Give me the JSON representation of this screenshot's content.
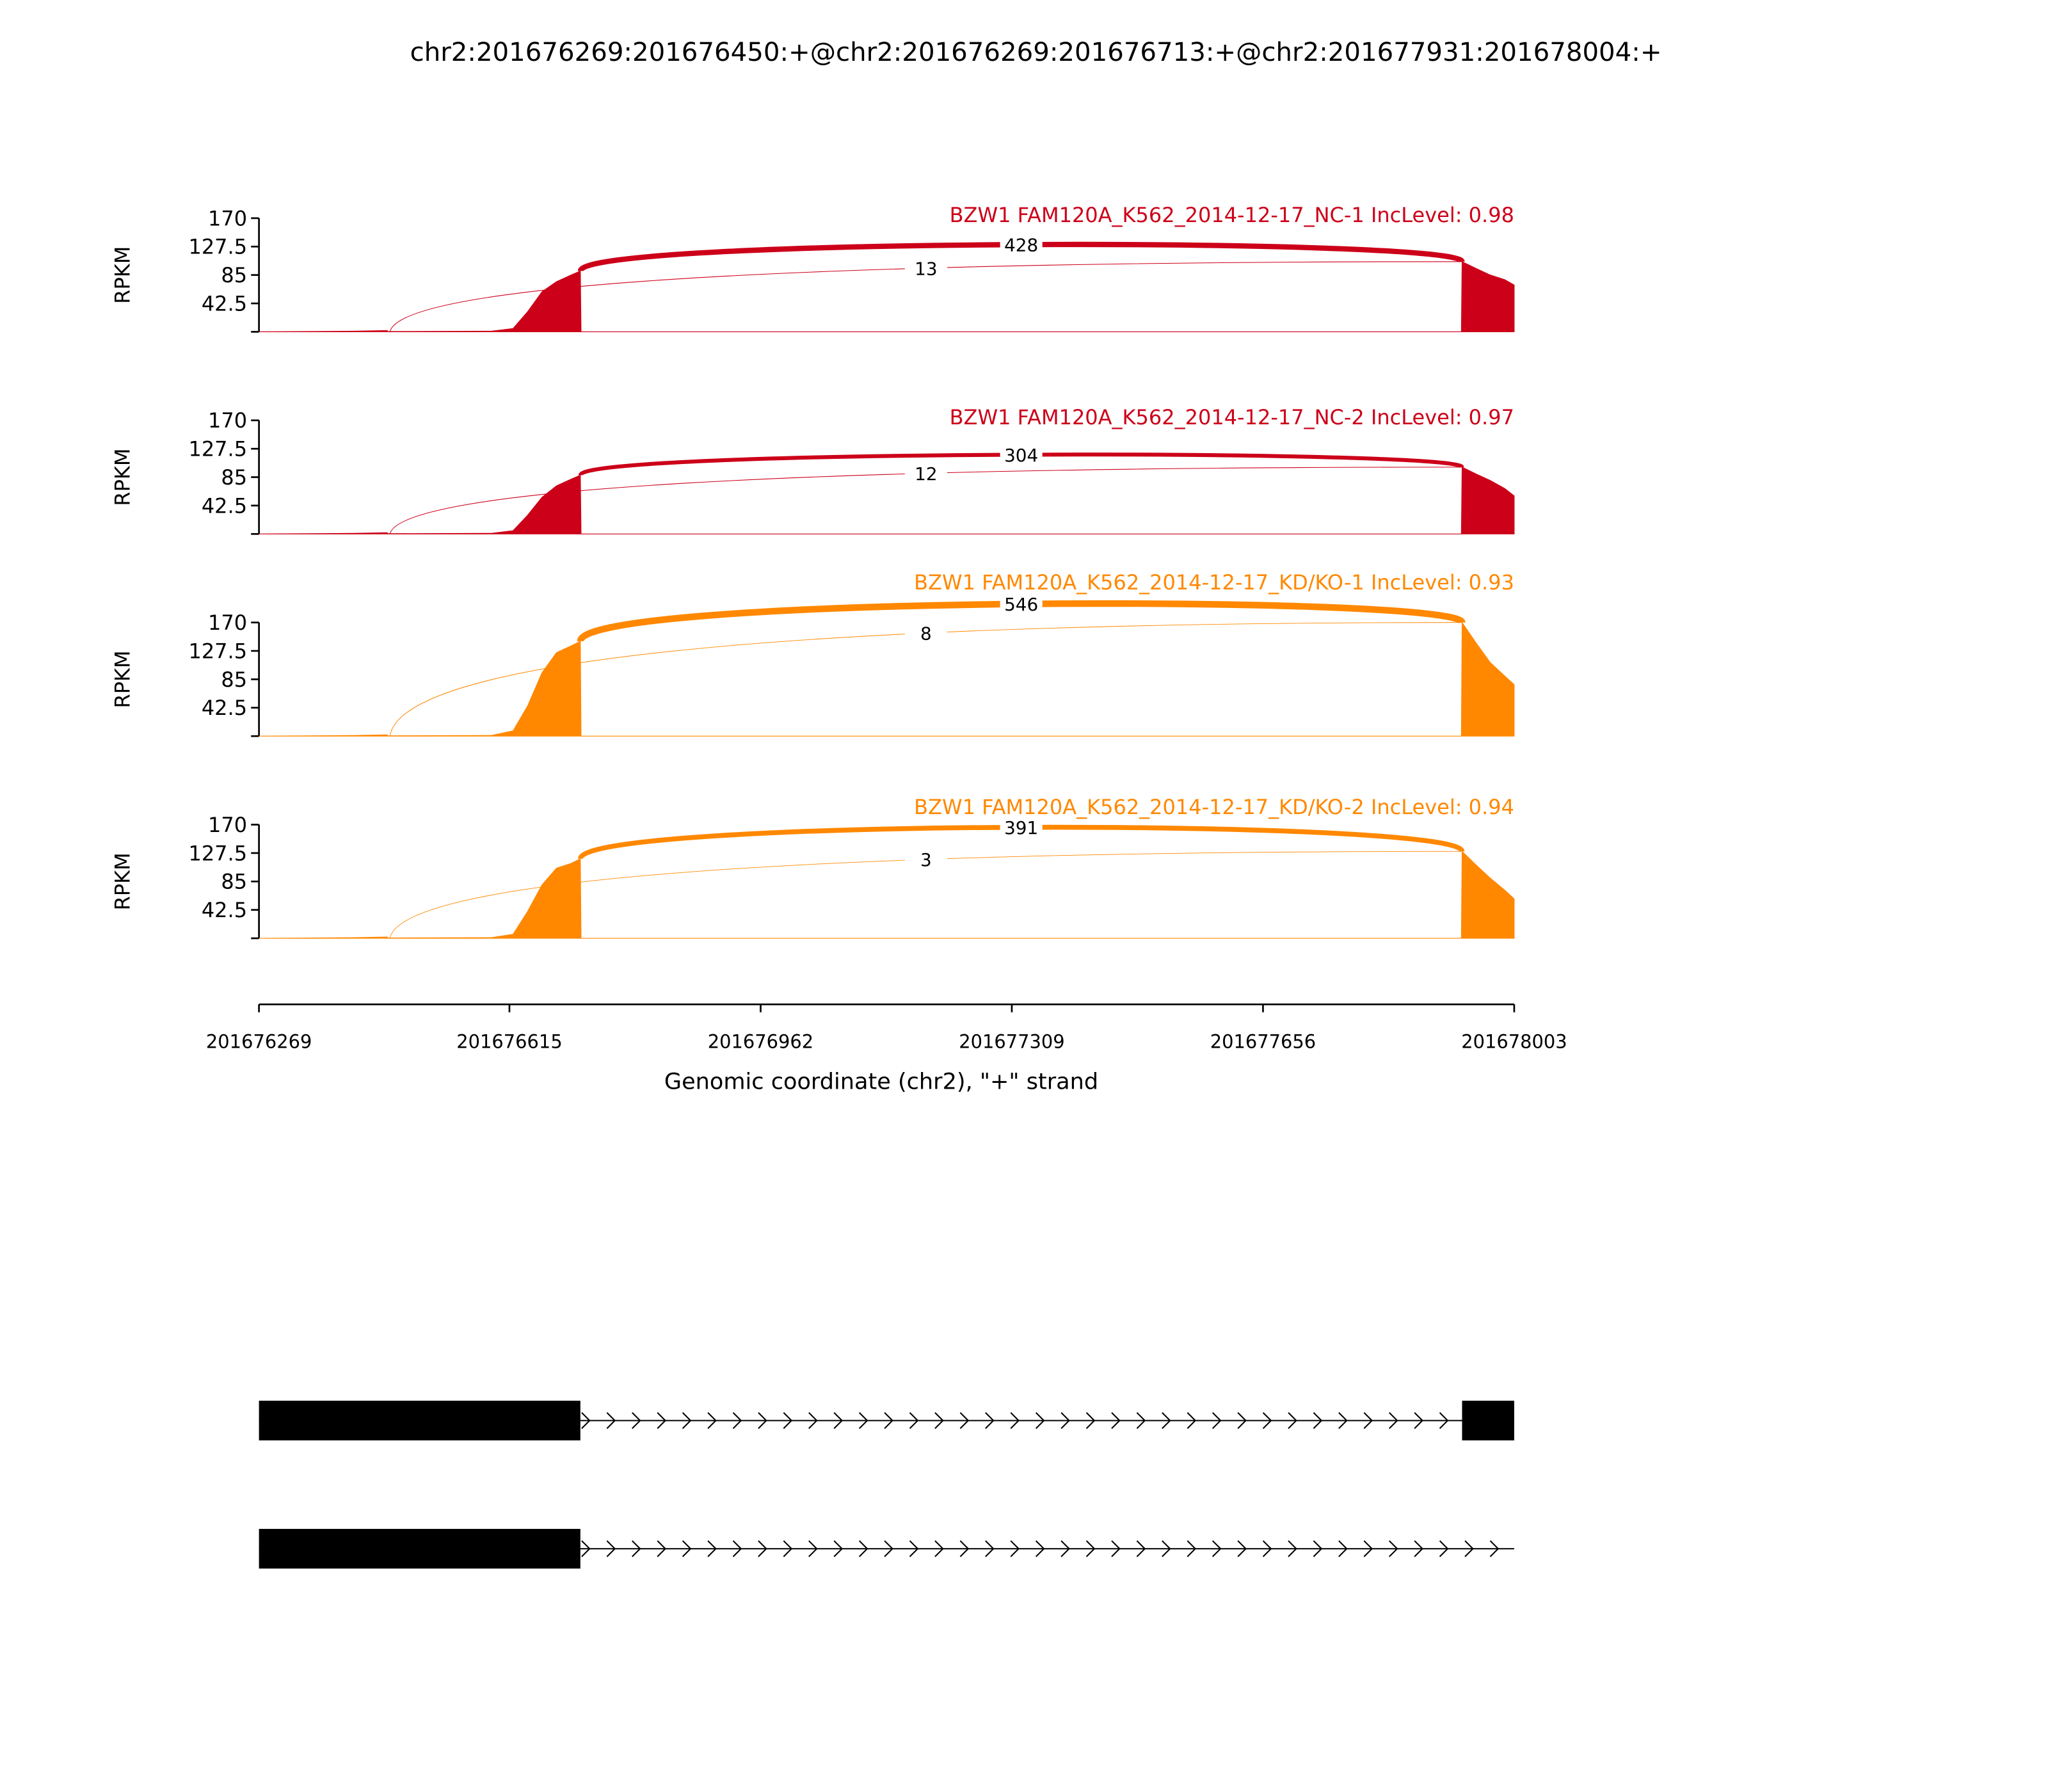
{
  "title": "chr2:201676269:201676450:+@chr2:201676269:201676713:+@chr2:201677931:201678004:+",
  "chart_data": [
    {
      "type": "sashimi",
      "title": "BZW1 FAM120A_K562_2014-12-17_NC-1 IncLevel: 0.98",
      "color": "#cc0019",
      "ylabel": "RPKM",
      "ylim": [
        0,
        170
      ],
      "yticks": [
        42.5,
        85,
        127.5,
        170
      ],
      "x": [
        201676269,
        201676400,
        201676446,
        201676447,
        201676590,
        201676620,
        201676640,
        201676660,
        201676680,
        201676700,
        201676713,
        201676714,
        201677930,
        201677931,
        201677950,
        201677970,
        201677990,
        201678003
      ],
      "values": [
        0,
        1,
        2,
        0.5,
        1,
        5,
        30,
        60,
        75,
        85,
        91,
        0,
        0,
        105,
        95,
        85,
        78,
        70
      ],
      "junctions": [
        {
          "start": 201676713,
          "end": 201677931,
          "count": 428
        },
        {
          "start": 201676450,
          "end": 201677931,
          "count": 13
        }
      ]
    },
    {
      "type": "sashimi",
      "title": "BZW1 FAM120A_K562_2014-12-17_NC-2 IncLevel: 0.97",
      "color": "#cc0019",
      "ylabel": "RPKM",
      "ylim": [
        0,
        170
      ],
      "yticks": [
        42.5,
        85,
        127.5,
        170
      ],
      "x": [
        201676269,
        201676400,
        201676446,
        201676447,
        201676590,
        201676620,
        201676640,
        201676660,
        201676680,
        201676700,
        201676713,
        201676714,
        201677930,
        201677931,
        201677950,
        201677970,
        201677990,
        201678003
      ],
      "values": [
        0,
        1,
        2,
        0.5,
        1,
        5,
        28,
        55,
        72,
        82,
        88,
        0,
        0,
        100,
        90,
        80,
        68,
        57
      ],
      "junctions": [
        {
          "start": 201676713,
          "end": 201677931,
          "count": 304
        },
        {
          "start": 201676450,
          "end": 201677931,
          "count": 12
        }
      ]
    },
    {
      "type": "sashimi",
      "title": "BZW1 FAM120A_K562_2014-12-17_KD/KO-1 IncLevel: 0.93",
      "color": "#ff8800",
      "ylabel": "RPKM",
      "ylim": [
        0,
        170
      ],
      "yticks": [
        42.5,
        85,
        127.5,
        170
      ],
      "x": [
        201676269,
        201676400,
        201676446,
        201676447,
        201676590,
        201676620,
        201676640,
        201676660,
        201676680,
        201676700,
        201676713,
        201676714,
        201677930,
        201677931,
        201677950,
        201677970,
        201677990,
        201678003
      ],
      "values": [
        0,
        1,
        2,
        0.5,
        1,
        8,
        45,
        95,
        125,
        135,
        142,
        0,
        0,
        170,
        140,
        110,
        90,
        77
      ],
      "junctions": [
        {
          "start": 201676713,
          "end": 201677931,
          "count": 546
        },
        {
          "start": 201676450,
          "end": 201677931,
          "count": 8
        }
      ]
    },
    {
      "type": "sashimi",
      "title": "BZW1 FAM120A_K562_2014-12-17_KD/KO-2 IncLevel: 0.94",
      "color": "#ff8800",
      "ylabel": "RPKM",
      "ylim": [
        0,
        170
      ],
      "yticks": [
        42.5,
        85,
        127.5,
        170
      ],
      "x": [
        201676269,
        201676400,
        201676446,
        201676447,
        201676590,
        201676620,
        201676640,
        201676660,
        201676680,
        201676700,
        201676713,
        201676714,
        201677930,
        201677931,
        201677950,
        201677970,
        201677990,
        201678003
      ],
      "values": [
        0,
        1,
        2,
        0.5,
        1,
        6,
        40,
        80,
        105,
        112,
        119,
        0,
        0,
        130,
        110,
        90,
        72,
        59
      ],
      "junctions": [
        {
          "start": 201676713,
          "end": 201677931,
          "count": 391
        },
        {
          "start": 201676450,
          "end": 201677931,
          "count": 3
        }
      ]
    }
  ],
  "xaxis": {
    "label": "Genomic coordinate (chr2), \"+\" strand",
    "xlim": [
      201676269,
      201678003
    ],
    "xticks": [
      201676269,
      201676615,
      201676962,
      201677309,
      201677656,
      201678003
    ]
  },
  "transcripts": [
    {
      "exons": [
        [
          201676269,
          201676713
        ],
        [
          201677931,
          201678003
        ]
      ],
      "span": [
        201676269,
        201678003
      ]
    },
    {
      "exons": [
        [
          201676269,
          201676713
        ]
      ],
      "span": [
        201676269,
        201678003
      ]
    }
  ]
}
